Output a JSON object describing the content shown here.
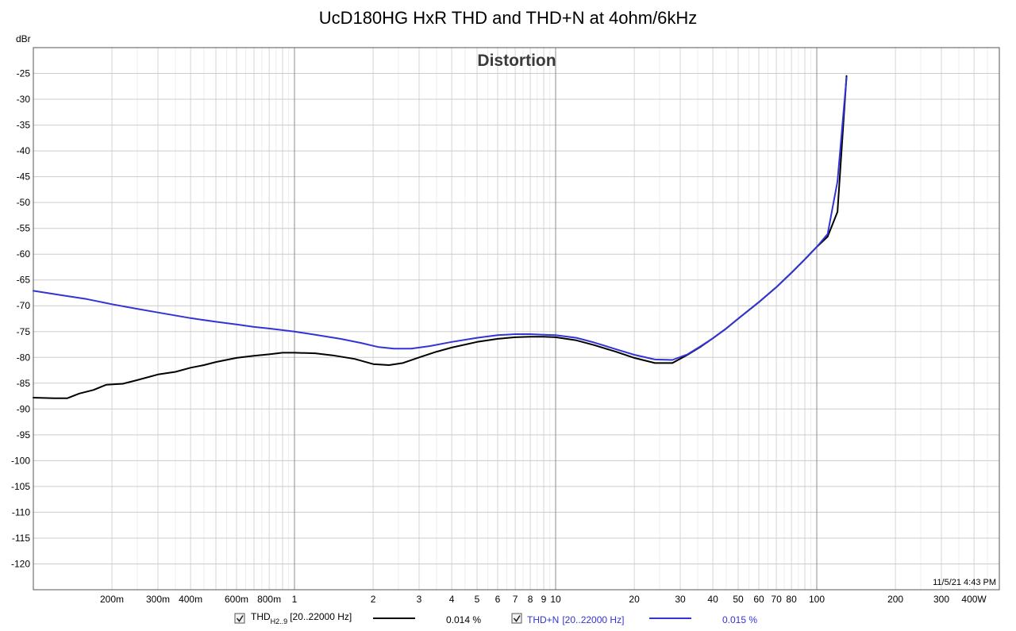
{
  "chart_data": {
    "type": "line",
    "title": "UcD180HG HxR THD and THD+N at 4ohm/6kHz",
    "inner_title": "Distortion",
    "ylabel": "dBr",
    "xlabel": "",
    "x_scale": "log",
    "xlim": [
      0.1,
      500
    ],
    "ylim": [
      -125,
      -20
    ],
    "grid": true,
    "timestamp": "11/5/21 4:43 PM",
    "x_ticks": [
      {
        "value": 0.2,
        "label": "200m"
      },
      {
        "value": 0.3,
        "label": "300m"
      },
      {
        "value": 0.4,
        "label": "400m"
      },
      {
        "value": 0.6,
        "label": "600m"
      },
      {
        "value": 0.8,
        "label": "800m"
      },
      {
        "value": 1,
        "label": "1"
      },
      {
        "value": 2,
        "label": "2"
      },
      {
        "value": 3,
        "label": "3"
      },
      {
        "value": 4,
        "label": "4"
      },
      {
        "value": 5,
        "label": "5"
      },
      {
        "value": 6,
        "label": "6"
      },
      {
        "value": 7,
        "label": "7"
      },
      {
        "value": 8,
        "label": "8"
      },
      {
        "value": 9,
        "label": "9"
      },
      {
        "value": 10,
        "label": "10"
      },
      {
        "value": 20,
        "label": "20"
      },
      {
        "value": 30,
        "label": "30"
      },
      {
        "value": 40,
        "label": "40"
      },
      {
        "value": 50,
        "label": "50"
      },
      {
        "value": 60,
        "label": "60"
      },
      {
        "value": 70,
        "label": "70"
      },
      {
        "value": 80,
        "label": "80"
      },
      {
        "value": 100,
        "label": "100"
      },
      {
        "value": 200,
        "label": "200"
      },
      {
        "value": 300,
        "label": "300"
      },
      {
        "value": 400,
        "label": "400W"
      }
    ],
    "y_ticks": [
      {
        "value": -25,
        "label": "-25"
      },
      {
        "value": -30,
        "label": "-30"
      },
      {
        "value": -35,
        "label": "-35"
      },
      {
        "value": -40,
        "label": "-40"
      },
      {
        "value": -45,
        "label": "-45"
      },
      {
        "value": -50,
        "label": "-50"
      },
      {
        "value": -55,
        "label": "-55"
      },
      {
        "value": -60,
        "label": "-60"
      },
      {
        "value": -65,
        "label": "-65"
      },
      {
        "value": -70,
        "label": "-70"
      },
      {
        "value": -75,
        "label": "-75"
      },
      {
        "value": -80,
        "label": "-80"
      },
      {
        "value": -85,
        "label": "-85"
      },
      {
        "value": -90,
        "label": "-90"
      },
      {
        "value": -95,
        "label": "-95"
      },
      {
        "value": -100,
        "label": "-100"
      },
      {
        "value": -105,
        "label": "-105"
      },
      {
        "value": -110,
        "label": "-110"
      },
      {
        "value": -115,
        "label": "-115"
      },
      {
        "value": -120,
        "label": "-120"
      }
    ],
    "series": [
      {
        "name": "THD",
        "color": "#000000",
        "x": [
          0.1,
          0.12,
          0.135,
          0.15,
          0.17,
          0.19,
          0.22,
          0.25,
          0.3,
          0.35,
          0.4,
          0.45,
          0.5,
          0.6,
          0.7,
          0.8,
          0.9,
          1.0,
          1.2,
          1.4,
          1.7,
          2.0,
          2.3,
          2.6,
          3.0,
          3.5,
          4.0,
          5.0,
          6.0,
          7.0,
          8.0,
          9.0,
          10.0,
          12.0,
          14.0,
          17.0,
          20.0,
          24.0,
          28.0,
          32.0,
          36.0,
          40.0,
          45.0,
          50.0,
          60.0,
          70.0,
          80.0,
          90.0,
          100.0,
          110.0,
          120.0,
          130.0
        ],
        "y": [
          -87.8,
          -87.9,
          -87.9,
          -87.0,
          -86.3,
          -85.3,
          -85.1,
          -84.4,
          -83.3,
          -82.8,
          -82.0,
          -81.5,
          -80.9,
          -80.1,
          -79.7,
          -79.4,
          -79.1,
          -79.1,
          -79.2,
          -79.6,
          -80.3,
          -81.3,
          -81.5,
          -81.1,
          -80.0,
          -78.9,
          -78.1,
          -77.0,
          -76.4,
          -76.1,
          -76.0,
          -76.0,
          -76.1,
          -76.7,
          -77.6,
          -78.9,
          -80.1,
          -81.1,
          -81.1,
          -79.5,
          -77.9,
          -76.3,
          -74.4,
          -72.5,
          -69.3,
          -66.4,
          -63.6,
          -61.0,
          -58.6,
          -56.6,
          -51.8,
          -25.5
        ]
      },
      {
        "name": "THD+N",
        "color": "#3333d6",
        "x": [
          0.1,
          0.13,
          0.16,
          0.2,
          0.25,
          0.3,
          0.4,
          0.5,
          0.6,
          0.7,
          0.8,
          1.0,
          1.2,
          1.5,
          1.8,
          2.1,
          2.4,
          2.8,
          3.3,
          4.0,
          5.0,
          6.0,
          7.0,
          8.0,
          9.0,
          10.0,
          12.0,
          14.0,
          17.0,
          20.0,
          24.0,
          28.0,
          32.0,
          36.0,
          40.0,
          45.0,
          50.0,
          60.0,
          70.0,
          80.0,
          90.0,
          100.0,
          110.0,
          120.0,
          130.0
        ],
        "y": [
          -67.1,
          -68.0,
          -68.7,
          -69.7,
          -70.6,
          -71.3,
          -72.4,
          -73.1,
          -73.6,
          -74.1,
          -74.4,
          -75.0,
          -75.6,
          -76.4,
          -77.2,
          -78.0,
          -78.3,
          -78.3,
          -77.8,
          -77.0,
          -76.2,
          -75.7,
          -75.5,
          -75.5,
          -75.6,
          -75.7,
          -76.2,
          -77.1,
          -78.4,
          -79.5,
          -80.4,
          -80.5,
          -79.4,
          -77.8,
          -76.3,
          -74.4,
          -72.5,
          -69.3,
          -66.4,
          -63.6,
          -61.0,
          -58.6,
          -56.1,
          -45.9,
          -25.8
        ]
      }
    ]
  },
  "legend": [
    {
      "name": "THD",
      "sub": "H2..9",
      "range": "[20..22000 Hz]",
      "value": "0.014 %",
      "color": "#000000",
      "checked": true
    },
    {
      "name": "THD+N",
      "sub": "",
      "range": "[20..22000 Hz]",
      "value": "0.015 %",
      "color": "#3333d6",
      "checked": true
    }
  ]
}
